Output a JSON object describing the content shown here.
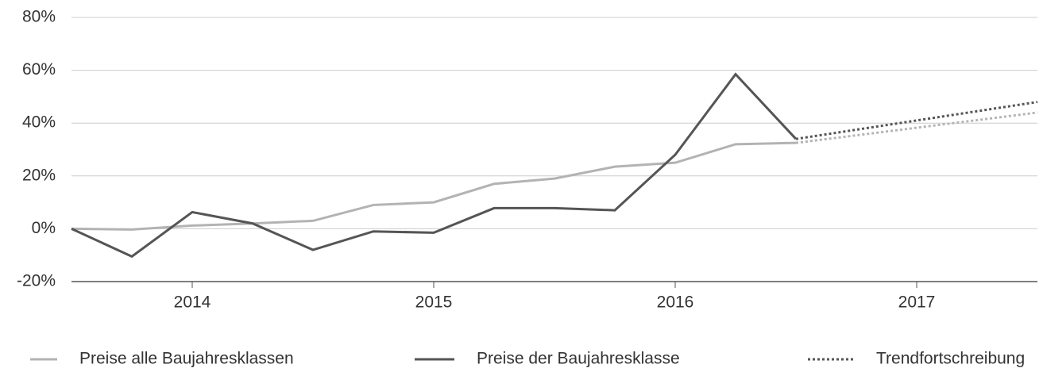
{
  "chart_data": {
    "type": "line",
    "x": [
      2013.5,
      2013.75,
      2014,
      2014.25,
      2014.5,
      2014.75,
      2015,
      2015.25,
      2015.5,
      2015.75,
      2016,
      2016.25,
      2016.5
    ],
    "series": [
      {
        "name": "Preise alle Baujahresklassen",
        "color": "#b3b3b3",
        "values": [
          0,
          -0.3,
          1.2,
          2,
          3,
          9,
          10,
          17,
          19,
          23.5,
          25,
          32,
          32.5
        ]
      },
      {
        "name": "Preise der Baujahresklasse",
        "color": "#555555",
        "values": [
          0,
          -10.5,
          6.3,
          2,
          -8,
          -1,
          -1.5,
          7.8,
          7.8,
          7,
          28,
          58.5,
          34
        ]
      }
    ],
    "trend": {
      "name": "Trendfortschreibung",
      "x": [
        2016.5,
        2017.5
      ],
      "series": [
        {
          "color": "#b3b3b3",
          "values": [
            32.5,
            44
          ]
        },
        {
          "color": "#555555",
          "values": [
            34,
            48
          ]
        }
      ]
    },
    "xlim": [
      2013.5,
      2017.5
    ],
    "xticks": [
      2014,
      2015,
      2016,
      2017
    ],
    "ylim": [
      -20,
      80
    ],
    "yticks": [
      {
        "value": -20,
        "label": "-20%"
      },
      {
        "value": 0,
        "label": "0%"
      },
      {
        "value": 20,
        "label": "20%"
      },
      {
        "value": 40,
        "label": "40%"
      },
      {
        "value": 60,
        "label": "60%"
      },
      {
        "value": 80,
        "label": "80%"
      }
    ],
    "grid": true
  }
}
